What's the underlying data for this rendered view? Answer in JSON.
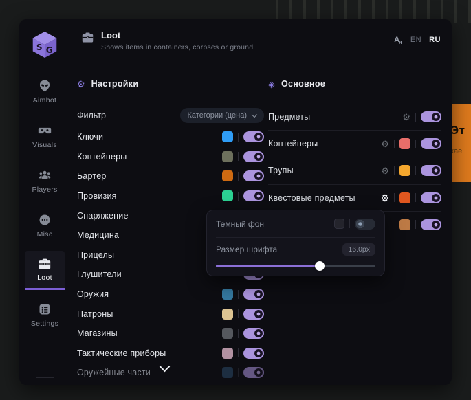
{
  "colors": {
    "accent": "#7c5fd6",
    "toggle_on": "#ab94de"
  },
  "background": {
    "poster": {
      "line1": "Эт",
      "line2": "кае",
      "color": "#de7a1d"
    }
  },
  "sidebar": {
    "logo_text": "SG",
    "items": [
      {
        "id": "aimbot",
        "label": "Aimbot",
        "active": false
      },
      {
        "id": "visuals",
        "label": "Visuals",
        "active": false
      },
      {
        "id": "players",
        "label": "Players",
        "active": false
      },
      {
        "id": "misc",
        "label": "Misc",
        "active": false
      },
      {
        "id": "loot",
        "label": "Loot",
        "active": true
      },
      {
        "id": "settings",
        "label": "Settings",
        "active": false
      }
    ]
  },
  "header": {
    "title": "Loot",
    "subtitle": "Shows items in containers, corpses or ground",
    "language": {
      "options": [
        {
          "label": "EN",
          "active": false
        },
        {
          "label": "RU",
          "active": true
        }
      ]
    }
  },
  "settings_panel": {
    "title": "Настройки",
    "filter": {
      "label": "Фильтр",
      "value": "Категории (цена)"
    },
    "items": [
      {
        "label": "Ключи",
        "color": "#2f9df7",
        "toggle": "on"
      },
      {
        "label": "Контейнеры",
        "color": "#6d705d",
        "toggle": "on"
      },
      {
        "label": "Бартер",
        "color": "#cd6a12",
        "toggle": "on"
      },
      {
        "label": "Провизия",
        "color": "#2cd193",
        "toggle": "on"
      },
      {
        "label": "Снаряжение",
        "color": null,
        "toggle": null
      },
      {
        "label": "Медицина",
        "color": null,
        "toggle": null
      },
      {
        "label": "Прицелы",
        "color": null,
        "toggle": null
      },
      {
        "label": "Глушители",
        "color": null,
        "toggle": "on"
      },
      {
        "label": "Оружия",
        "color": "#3579a0",
        "toggle": "on"
      },
      {
        "label": "Патроны",
        "color": "#dcc392",
        "toggle": "on"
      },
      {
        "label": "Магазины",
        "color": "#55585e",
        "toggle": "on"
      },
      {
        "label": "Тактические приборы",
        "color": "#b292a2",
        "toggle": "on"
      },
      {
        "label": "Оружейные части",
        "color": "#2b4a68",
        "toggle": "on",
        "faded": true
      }
    ]
  },
  "main_panel": {
    "title": "Основное",
    "rows": [
      {
        "label": "Предметы",
        "gear": true,
        "gear_active": false,
        "color": null,
        "toggle": "on"
      },
      {
        "label": "Контейнеры",
        "gear": true,
        "gear_active": false,
        "color": "#e96e6a",
        "toggle": "on"
      },
      {
        "label": "Трупы",
        "gear": true,
        "gear_active": false,
        "color": "#f4a72e",
        "toggle": "on"
      },
      {
        "label": "Квестовые предметы",
        "gear": true,
        "gear_active": true,
        "color": "#e0571f",
        "toggle": "on"
      },
      {
        "label": null,
        "gear": false,
        "gear_active": false,
        "color": "#bd7a45",
        "toggle": "on"
      }
    ]
  },
  "popup": {
    "dark_bg": {
      "label": "Темный фон",
      "swatch": "#24242c",
      "toggle": "off"
    },
    "font_size": {
      "label": "Размер шрифта",
      "value": "16.0px",
      "percent": 65
    }
  }
}
